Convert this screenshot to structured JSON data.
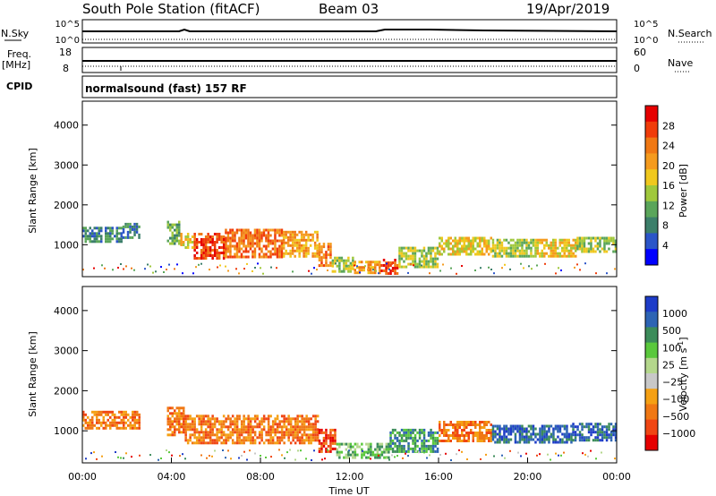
{
  "header": {
    "title": "South Pole Station (fitACF)",
    "beam": "Beam 03",
    "date": "19/Apr/2019"
  },
  "strips": {
    "nsky": {
      "label": "N.Sky",
      "left_ticks": [
        "10^5",
        "10^0"
      ],
      "right_label": "N.Search",
      "right_ticks": [
        "10^5",
        "10^0"
      ]
    },
    "freq": {
      "label_line1": "Freq.",
      "label_line2": "[MHz]",
      "left_ticks": [
        "18",
        "8"
      ],
      "right_label": "Nave",
      "right_ticks": [
        "60",
        "0"
      ]
    },
    "cpid": {
      "label": "CPID",
      "text": "normalsound (fast) 157 RF"
    }
  },
  "colors": {
    "power_scale": [
      "#0000ff",
      "#2b55c8",
      "#3c7f6a",
      "#5aa55a",
      "#a0c83c",
      "#f0c81e",
      "#f59b1e",
      "#f07814",
      "#f03c0a",
      "#e60000"
    ],
    "velocity_scale": [
      "#e60000",
      "#f04614",
      "#f07814",
      "#f5a014",
      "#c8c8c8",
      "#b4d78c",
      "#5ac83c",
      "#3c8c5a",
      "#2d64b4",
      "#1e3cc8"
    ]
  },
  "chart_data": [
    {
      "type": "heatmap",
      "name_hint": "power panel",
      "ylabel": "Slant Range [km]",
      "yticks": [
        "4000",
        "3000",
        "2000",
        "1000"
      ],
      "ylim": [
        200,
        4600
      ],
      "xlim": [
        0,
        24
      ],
      "colorbar": {
        "title": "Power [dB]",
        "ticks": [
          "28",
          "24",
          "20",
          "16",
          "12",
          "8",
          "4"
        ]
      },
      "bands": [
        {
          "t0": 0.0,
          "t1": 1.8,
          "r0": 1050,
          "r1": 1450,
          "level": 2
        },
        {
          "t0": 1.8,
          "t1": 2.6,
          "r0": 1150,
          "r1": 1550,
          "level": 2
        },
        {
          "t0": 3.8,
          "t1": 4.4,
          "r0": 1000,
          "r1": 1600,
          "level": 3
        },
        {
          "t0": 4.4,
          "t1": 5.0,
          "r0": 900,
          "r1": 1300,
          "level": 5
        },
        {
          "t0": 5.0,
          "t1": 6.4,
          "r0": 650,
          "r1": 1300,
          "level": 8
        },
        {
          "t0": 6.4,
          "t1": 9.0,
          "r0": 700,
          "r1": 1400,
          "level": 7
        },
        {
          "t0": 9.0,
          "t1": 10.6,
          "r0": 700,
          "r1": 1350,
          "level": 6
        },
        {
          "t0": 10.6,
          "t1": 11.2,
          "r0": 450,
          "r1": 1050,
          "level": 7
        },
        {
          "t0": 11.2,
          "t1": 12.2,
          "r0": 350,
          "r1": 700,
          "level": 4
        },
        {
          "t0": 12.2,
          "t1": 13.4,
          "r0": 300,
          "r1": 600,
          "level": 6
        },
        {
          "t0": 13.4,
          "t1": 14.2,
          "r0": 300,
          "r1": 650,
          "level": 8
        },
        {
          "t0": 14.2,
          "t1": 16.0,
          "r0": 450,
          "r1": 950,
          "level": 4
        },
        {
          "t0": 16.0,
          "t1": 18.4,
          "r0": 750,
          "r1": 1200,
          "level": 5
        },
        {
          "t0": 18.4,
          "t1": 20.4,
          "r0": 700,
          "r1": 1150,
          "level": 4
        },
        {
          "t0": 20.4,
          "t1": 22.2,
          "r0": 700,
          "r1": 1150,
          "level": 5
        },
        {
          "t0": 22.2,
          "t1": 24.0,
          "r0": 800,
          "r1": 1200,
          "level": 4
        }
      ]
    },
    {
      "type": "heatmap",
      "name_hint": "velocity panel",
      "ylabel": "Slant Range [km]",
      "yticks": [
        "4000",
        "3000",
        "2000",
        "1000"
      ],
      "ylim": [
        200,
        4600
      ],
      "xlim": [
        0,
        24
      ],
      "xticks": [
        "00:00",
        "04:00",
        "08:00",
        "12:00",
        "16:00",
        "20:00",
        "00:00"
      ],
      "xlabel": "Time UT",
      "colorbar": {
        "title": "Velocity [m s",
        "title_sup": "-1",
        "title_end": "]",
        "ticks": [
          "1000",
          "500",
          "100",
          "25",
          "−25",
          "−100",
          "−500",
          "−1000"
        ]
      },
      "bands": [
        {
          "t0": 0.0,
          "t1": 2.6,
          "r0": 1050,
          "r1": 1500,
          "level": 2
        },
        {
          "t0": 3.8,
          "t1": 4.6,
          "r0": 900,
          "r1": 1600,
          "level": 2
        },
        {
          "t0": 4.6,
          "t1": 10.6,
          "r0": 700,
          "r1": 1400,
          "level": 2
        },
        {
          "t0": 10.6,
          "t1": 11.4,
          "r0": 500,
          "r1": 1050,
          "level": 1
        },
        {
          "t0": 11.4,
          "t1": 13.8,
          "r0": 300,
          "r1": 700,
          "level": 6
        },
        {
          "t0": 13.8,
          "t1": 16.0,
          "r0": 450,
          "r1": 1050,
          "level": 7
        },
        {
          "t0": 16.0,
          "t1": 18.4,
          "r0": 750,
          "r1": 1250,
          "level": 2
        },
        {
          "t0": 18.4,
          "t1": 22.0,
          "r0": 700,
          "r1": 1150,
          "level": 8
        },
        {
          "t0": 22.0,
          "t1": 24.0,
          "r0": 750,
          "r1": 1200,
          "level": 8
        }
      ]
    }
  ]
}
